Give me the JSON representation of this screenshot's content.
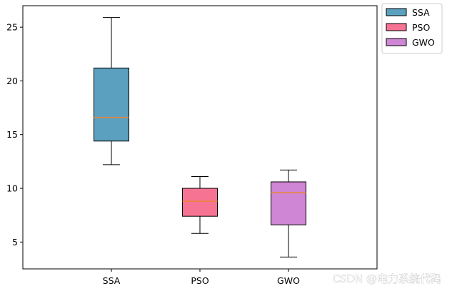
{
  "chart_data": {
    "type": "box",
    "categories": [
      "SSA",
      "PSO",
      "GWO"
    ],
    "series": [
      {
        "name": "SSA",
        "color": "#5ca0bf",
        "whisker_low": 12.2,
        "q1": 14.4,
        "median": 16.6,
        "q3": 21.2,
        "whisker_high": 25.9
      },
      {
        "name": "PSO",
        "color": "#f77394",
        "whisker_low": 5.8,
        "q1": 7.4,
        "median": 8.8,
        "q3": 10.0,
        "whisker_high": 11.1
      },
      {
        "name": "GWO",
        "color": "#cf86d4",
        "whisker_low": 3.6,
        "q1": 6.6,
        "median": 9.6,
        "q3": 10.6,
        "whisker_high": 11.7
      }
    ],
    "median_color": "#e8853a",
    "ylim": [
      2.5,
      27
    ],
    "yticks": [
      5,
      10,
      15,
      20,
      25
    ],
    "legend": {
      "entries": [
        "SSA",
        "PSO",
        "GWO"
      ],
      "placement": "outside-top-right"
    },
    "grid": false
  },
  "watermark": "CSDN @电力系统代码"
}
